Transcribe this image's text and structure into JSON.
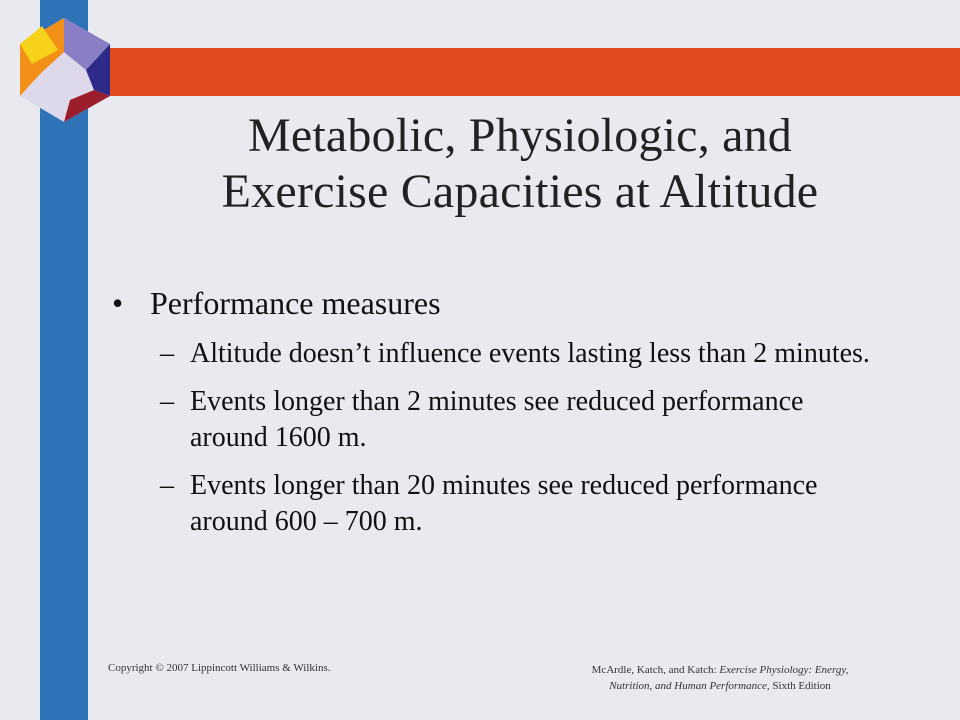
{
  "colors": {
    "background": "#e8eaf0",
    "left_bar": "#2e72b8",
    "top_band": "#e24a1f",
    "logo_yellow": "#f7d21a",
    "logo_orange": "#f39018",
    "logo_purple": "#8a7fc4",
    "logo_navy": "#2d2a8a",
    "logo_red": "#9c1e2c",
    "logo_light": "#ddd8ea"
  },
  "slide": {
    "title_line1": "Metabolic, Physiologic, and",
    "title_line2": "Exercise Capacities at Altitude",
    "bullet": {
      "marker": "•",
      "text": "Performance measures"
    },
    "subitems": [
      {
        "marker": "–",
        "text": "Altitude doesn’t influence events lasting less than 2 minutes."
      },
      {
        "marker": "–",
        "text": "Events longer than 2 minutes see reduced performance around 1600 m."
      },
      {
        "marker": "–",
        "text": "Events longer than 20 minutes see reduced performance around 600 – 700 m."
      }
    ]
  },
  "footer": {
    "copyright": "Copyright © 2007 Lippincott Williams & Wilkins.",
    "citation_authors": "McArdle, Katch, and Katch: ",
    "citation_title_a": "Exercise Physiology: Energy,",
    "citation_title_b": "Nutrition, and Human Performance,",
    "citation_edition": " Sixth Edition"
  }
}
